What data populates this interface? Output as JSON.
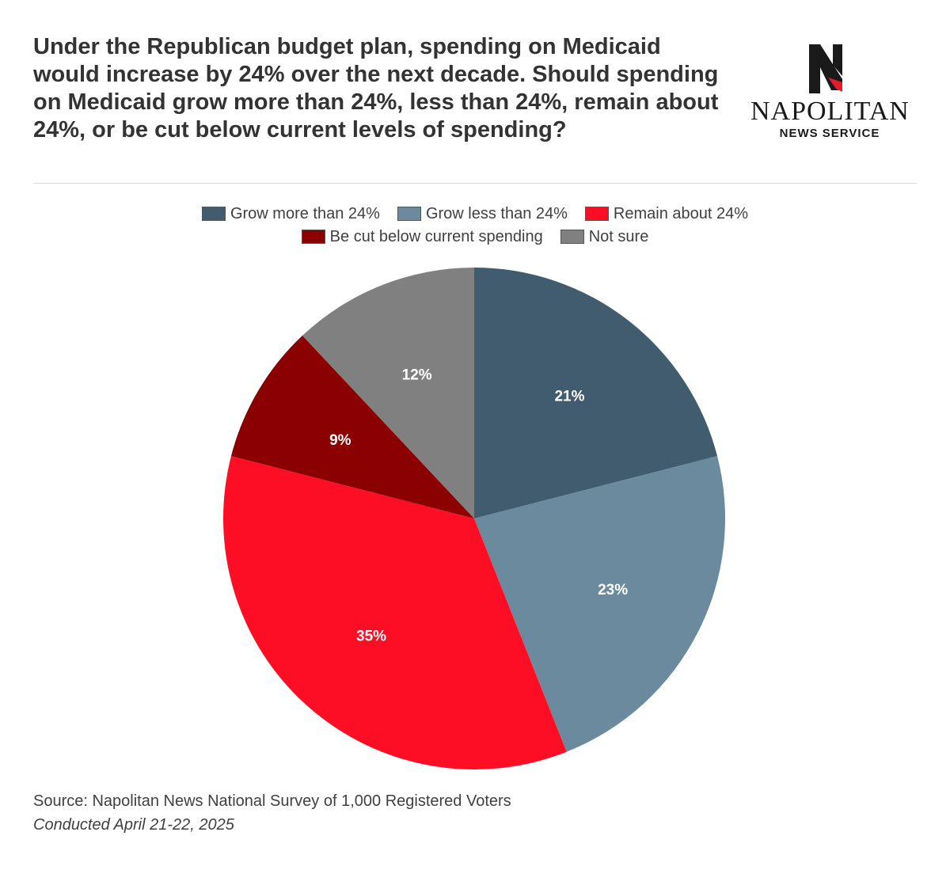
{
  "title": "Under the Republican budget plan, spending on Medicaid would increase by 24% over the next decade. Should spending on Medicaid grow more than 24%, less than 24%, remain about 24%, or be cut below current levels of spending?",
  "logo": {
    "name": "NAPOLITAN",
    "subtitle": "NEWS SERVICE"
  },
  "chart_data": {
    "type": "pie",
    "title": "Under the Republican budget plan, spending on Medicaid would increase by 24% over the next decade. Should spending on Medicaid grow more than 24%, less than 24%, remain about 24%, or be cut below current levels of spending?",
    "legend_position": "top",
    "slices": [
      {
        "label": "Grow more than 24%",
        "value": 21,
        "display": "21%",
        "color": "#415c6f"
      },
      {
        "label": "Grow less than 24%",
        "value": 23,
        "display": "23%",
        "color": "#6b8a9e"
      },
      {
        "label": "Remain about 24%",
        "value": 35,
        "display": "35%",
        "color": "#fe0e24"
      },
      {
        "label": "Be cut below current spending",
        "value": 9,
        "display": "9%",
        "color": "#8b0000"
      },
      {
        "label": "Not sure",
        "value": 12,
        "display": "12%",
        "color": "#808080"
      }
    ]
  },
  "footer": {
    "source": "Source: Napolitan News National Survey of 1,000 Registered Voters",
    "conducted": "Conducted April 21-22, 2025"
  }
}
